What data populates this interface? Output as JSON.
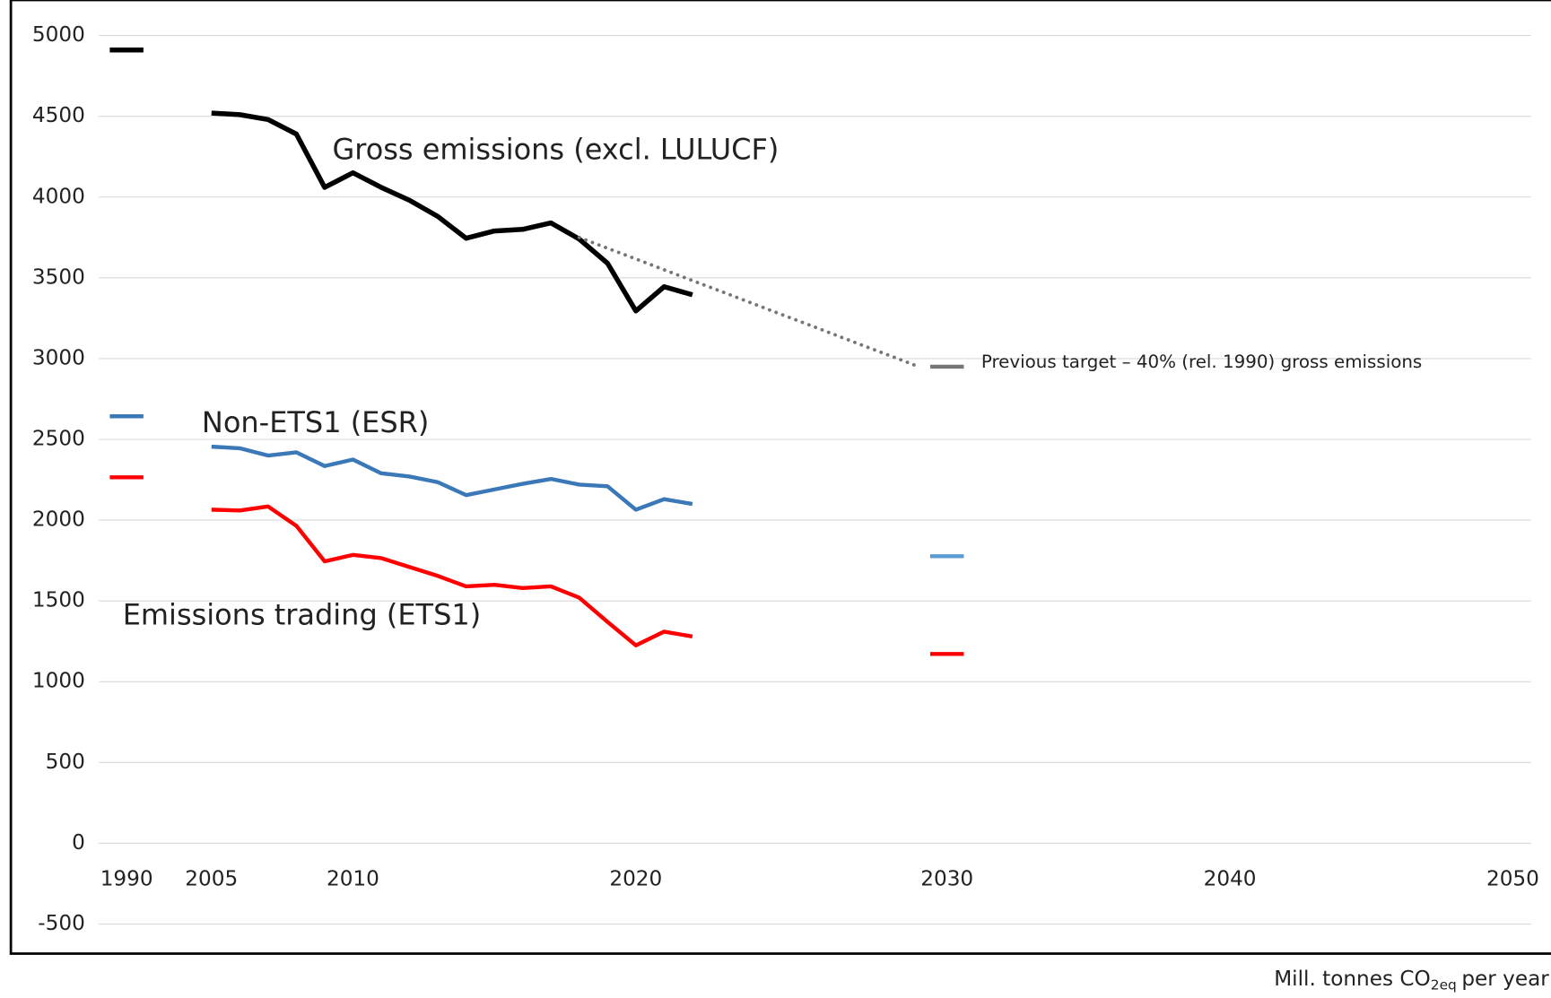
{
  "chart_data": {
    "type": "line",
    "categories": [
      "1990",
      null,
      null,
      "2005",
      null,
      null,
      null,
      null,
      "2010",
      null,
      null,
      null,
      null,
      null,
      null,
      null,
      null,
      null,
      "2020",
      null,
      null,
      null,
      null,
      null,
      null,
      null,
      null,
      null,
      null,
      "2030",
      null,
      null,
      null,
      null,
      null,
      null,
      null,
      null,
      null,
      "2040",
      null,
      null,
      null,
      null,
      null,
      null,
      null,
      null,
      null,
      "2050"
    ],
    "series": [
      {
        "color": "#000000",
        "style": "solid",
        "values": [
          4910,
          null,
          null,
          4520,
          4510,
          4480,
          4390,
          4060,
          4150,
          4060,
          3980,
          3880,
          3745,
          3790,
          3800,
          3840,
          3740,
          3590,
          3295,
          3445,
          3395,
          null,
          null,
          null,
          null,
          null,
          null,
          null,
          null,
          null,
          null,
          null,
          null,
          null,
          null,
          null,
          null,
          null,
          null,
          null,
          null,
          null,
          null,
          null,
          null,
          null,
          null,
          null,
          null,
          null
        ]
      },
      {
        "color": "#3a78b8",
        "style": "solid",
        "values": [
          2643,
          null,
          null,
          2455,
          2445,
          2400,
          2420,
          2335,
          2375,
          2290,
          2270,
          2235,
          2155,
          2190,
          2225,
          2255,
          2220,
          2210,
          2065,
          2130,
          2100,
          null,
          null,
          null,
          null,
          null,
          null,
          null,
          null,
          null,
          null,
          null,
          null,
          null,
          null,
          null,
          null,
          null,
          null,
          null,
          null,
          null,
          null,
          null,
          null,
          null,
          null,
          null,
          null,
          null
        ]
      },
      {
        "color": "#ff0000",
        "style": "solid",
        "values": [
          2265,
          null,
          null,
          2065,
          2060,
          2085,
          1965,
          1745,
          1785,
          1765,
          1710,
          1655,
          1590,
          1600,
          1580,
          1590,
          1520,
          1370,
          1225,
          1310,
          1280,
          null,
          null,
          null,
          null,
          null,
          null,
          null,
          null,
          null,
          null,
          null,
          null,
          null,
          null,
          null,
          null,
          null,
          null,
          null,
          null,
          null,
          null,
          null,
          null,
          null,
          null,
          null,
          null,
          null
        ]
      },
      {
        "color": "#767676",
        "style": "dotted",
        "values": [
          null,
          null,
          null,
          null,
          null,
          null,
          null,
          null,
          null,
          null,
          null,
          null,
          null,
          null,
          null,
          null,
          3750,
          3683,
          3617,
          3550,
          3483,
          3417,
          3350,
          3283,
          3217,
          3150,
          3083,
          3017,
          2950,
          null,
          null,
          null,
          null,
          null,
          null,
          null,
          null,
          null,
          null,
          null,
          null,
          null,
          null,
          null,
          null,
          null,
          null,
          null,
          null,
          null
        ]
      },
      {
        "color": "#767676",
        "style": "solid",
        "values": [
          null,
          null,
          null,
          null,
          null,
          null,
          null,
          null,
          null,
          null,
          null,
          null,
          null,
          null,
          null,
          null,
          null,
          null,
          null,
          null,
          null,
          null,
          null,
          null,
          null,
          null,
          null,
          null,
          null,
          2950,
          null,
          null,
          null,
          null,
          null,
          null,
          null,
          null,
          null,
          null,
          null,
          null,
          null,
          null,
          null,
          null,
          null,
          null,
          null,
          null
        ]
      },
      {
        "color": "#5b9bd5",
        "style": "solid",
        "values": [
          null,
          null,
          null,
          null,
          null,
          null,
          null,
          null,
          null,
          null,
          null,
          null,
          null,
          null,
          null,
          null,
          null,
          null,
          null,
          null,
          null,
          null,
          null,
          null,
          null,
          null,
          null,
          null,
          null,
          1777,
          null,
          null,
          null,
          null,
          null,
          null,
          null,
          null,
          null,
          null,
          null,
          null,
          null,
          null,
          null,
          null,
          null,
          null,
          null,
          null
        ]
      },
      {
        "color": "#ff0000",
        "style": "solid",
        "values": [
          null,
          null,
          null,
          null,
          null,
          null,
          null,
          null,
          null,
          null,
          null,
          null,
          null,
          null,
          null,
          null,
          null,
          null,
          null,
          null,
          null,
          null,
          null,
          null,
          null,
          null,
          null,
          null,
          null,
          1172,
          null,
          null,
          null,
          null,
          null,
          null,
          null,
          null,
          null,
          null,
          null,
          null,
          null,
          null,
          null,
          null,
          null,
          null,
          null,
          null
        ]
      }
    ],
    "annotations": [
      "Gross emissions (excl. LULUCF)",
      "Non-ETS1 (ESR)",
      "Emissions trading (ETS1)",
      "Previous target – 40% (rel. 1990) gross emissions"
    ],
    "unit_label": [
      "Mill. tonnes CO",
      "2eq",
      "per year"
    ],
    "ylim": [
      -500,
      5000
    ],
    "yticks": [
      -500,
      0,
      500,
      1000,
      1500,
      2000,
      2500,
      3000,
      3500,
      4000,
      4500,
      5000
    ],
    "grid": true
  }
}
